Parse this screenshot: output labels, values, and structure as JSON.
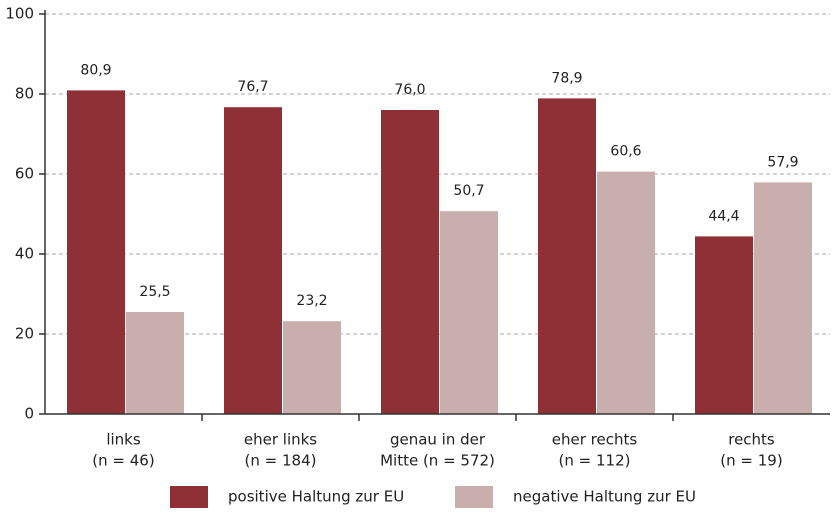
{
  "chart_data": {
    "type": "bar",
    "categories": [
      [
        "links",
        "(n = 46)"
      ],
      [
        "eher links",
        "(n = 184)"
      ],
      [
        "genau in der",
        "Mitte (n = 572)"
      ],
      [
        "eher rechts",
        "(n = 112)"
      ],
      [
        "rechts",
        "(n = 19)"
      ]
    ],
    "series": [
      {
        "name": "positive Haltung zur EU",
        "color": "#8e3035",
        "values": [
          80.9,
          76.7,
          76.0,
          78.9,
          44.4
        ],
        "value_labels": [
          "80,9",
          "76,7",
          "76,0",
          "78,9",
          "44,4"
        ]
      },
      {
        "name": "negative Haltung zur EU",
        "color": "#c9aeae",
        "values": [
          25.5,
          23.2,
          50.7,
          60.6,
          57.9
        ],
        "value_labels": [
          "25,5",
          "23,2",
          "50,7",
          "60,6",
          "57,9"
        ]
      }
    ],
    "ylim": [
      0,
      100
    ],
    "yticks": [
      0,
      20,
      40,
      60,
      80,
      100
    ],
    "grid": true
  }
}
